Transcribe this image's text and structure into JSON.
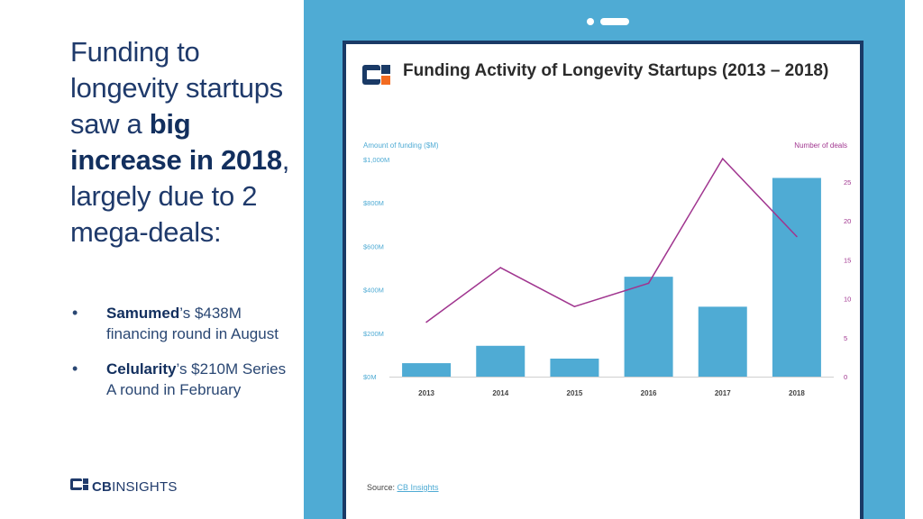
{
  "headline": {
    "part1": "Funding to longevity startups saw a ",
    "bold": "big increase in 2018",
    "part2": ", largely due to 2 mega-deals:"
  },
  "bullets": [
    {
      "marker": "•",
      "bold": "Samumed",
      "rest": "’s $438M financing round in August"
    },
    {
      "marker": "•",
      "bold": "Celularity",
      "rest": "’s $210M Series A round in February"
    }
  ],
  "brand": {
    "bold": "CB",
    "rest": "INSIGHTS"
  },
  "chart_data": {
    "type": "bar",
    "title": "Funding Activity of Longevity Startups (2013 – 2018)",
    "categories": [
      "2013",
      "2014",
      "2015",
      "2016",
      "2017",
      "2018"
    ],
    "series": [
      {
        "name": "Amount of funding ($M)",
        "type": "bar",
        "axis": "left",
        "values": [
          62,
          142,
          83,
          460,
          322,
          915
        ]
      },
      {
        "name": "Number of deals",
        "type": "line",
        "axis": "right",
        "values": [
          7,
          14,
          9,
          12,
          28,
          18
        ]
      }
    ],
    "ylabel_left": "Amount of funding ($M)",
    "ylabel_right": "Number of deals",
    "ylim_left": [
      0,
      1000
    ],
    "ylim_right": [
      0,
      28
    ],
    "left_ticks": [
      {
        "value": 0,
        "label": "$0M"
      },
      {
        "value": 200,
        "label": "$200M"
      },
      {
        "value": 400,
        "label": "$400M"
      },
      {
        "value": 600,
        "label": "$600M"
      },
      {
        "value": 800,
        "label": "$800M"
      },
      {
        "value": 1000,
        "label": "$1,000M"
      }
    ],
    "right_ticks": [
      {
        "value": 0,
        "label": "0"
      },
      {
        "value": 5,
        "label": "5"
      },
      {
        "value": 10,
        "label": "10"
      },
      {
        "value": 15,
        "label": "15"
      },
      {
        "value": 20,
        "label": "20"
      },
      {
        "value": 25,
        "label": "25"
      }
    ],
    "grid": false,
    "bar_color": "#4fabd4",
    "line_color": "#a0358f",
    "left_label_color": "#4fabd4",
    "right_label_color": "#a0358f",
    "source_label": "Source: ",
    "source_link": "CB Insights"
  }
}
